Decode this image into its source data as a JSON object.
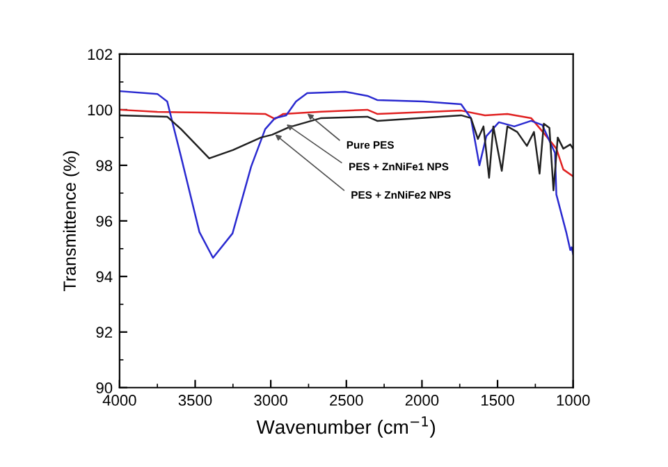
{
  "chart_data": {
    "type": "line",
    "xlabel": "Wavenumber (cm$^{−1}$)",
    "ylabel": "Transmittence (%)",
    "xlim": [
      4000,
      1000
    ],
    "xticks": [
      4000,
      3500,
      3000,
      2500,
      2000,
      1500,
      1000
    ],
    "ylim": [
      90,
      102
    ],
    "yticks": [
      90,
      92,
      94,
      96,
      98,
      100,
      102
    ],
    "grid": false,
    "legend": false,
    "marker": "none",
    "line_style": "solid",
    "series": [
      {
        "color": "#e02020",
        "x": [
          4000,
          3750,
          3435,
          3037,
          2972,
          2917,
          2667,
          2361,
          2296,
          1741,
          1583,
          1435,
          1278,
          1185,
          1111,
          1065,
          1000
        ],
        "values": [
          100.0,
          99.92,
          99.9,
          99.85,
          99.67,
          99.85,
          99.93,
          100.0,
          99.85,
          99.97,
          99.8,
          99.85,
          99.7,
          99.1,
          98.6,
          97.85,
          97.6
        ]
      },
      {
        "color": "#2a2ad0",
        "x": [
          4000,
          3750,
          3685,
          3593,
          3472,
          3382,
          3253,
          3130,
          3037,
          2972,
          2898,
          2833,
          2759,
          2509,
          2361,
          2296,
          1991,
          1741,
          1676,
          1620,
          1574,
          1491,
          1389,
          1278,
          1204,
          1120,
          1111,
          1046,
          1019,
          1010,
          1000
        ],
        "values": [
          100.67,
          100.57,
          100.3,
          98.3,
          95.6,
          94.67,
          95.55,
          97.95,
          99.3,
          99.7,
          99.8,
          100.3,
          100.6,
          100.65,
          100.5,
          100.35,
          100.3,
          100.2,
          99.7,
          98.0,
          99.05,
          99.55,
          99.4,
          99.6,
          99.45,
          98.45,
          96.95,
          95.6,
          94.95,
          95.05,
          94.8
        ]
      },
      {
        "color": "#202020",
        "x": [
          4000,
          3685,
          3593,
          3407,
          3250,
          3065,
          2991,
          2880,
          2667,
          2361,
          2296,
          1741,
          1676,
          1630,
          1593,
          1556,
          1528,
          1472,
          1435,
          1370,
          1306,
          1259,
          1222,
          1194,
          1157,
          1130,
          1102,
          1065,
          1019,
          1000
        ],
        "values": [
          99.8,
          99.75,
          99.3,
          98.25,
          98.55,
          99.0,
          99.1,
          99.37,
          99.7,
          99.75,
          99.6,
          99.8,
          99.7,
          98.95,
          99.4,
          97.55,
          99.4,
          97.8,
          99.4,
          99.2,
          98.7,
          99.2,
          97.7,
          99.5,
          99.35,
          97.1,
          99.0,
          98.6,
          98.75,
          98.6
        ]
      }
    ],
    "annotations": [
      {
        "text": "Pure PES",
        "x": 2778,
        "y": 99.95
      },
      {
        "text": "PES + ZnNiFe1 NPS",
        "x": 2917,
        "y": 99.55
      },
      {
        "text": "PES + ZnNiFe2 NPS",
        "x": 2991,
        "y": 99.2
      }
    ]
  }
}
